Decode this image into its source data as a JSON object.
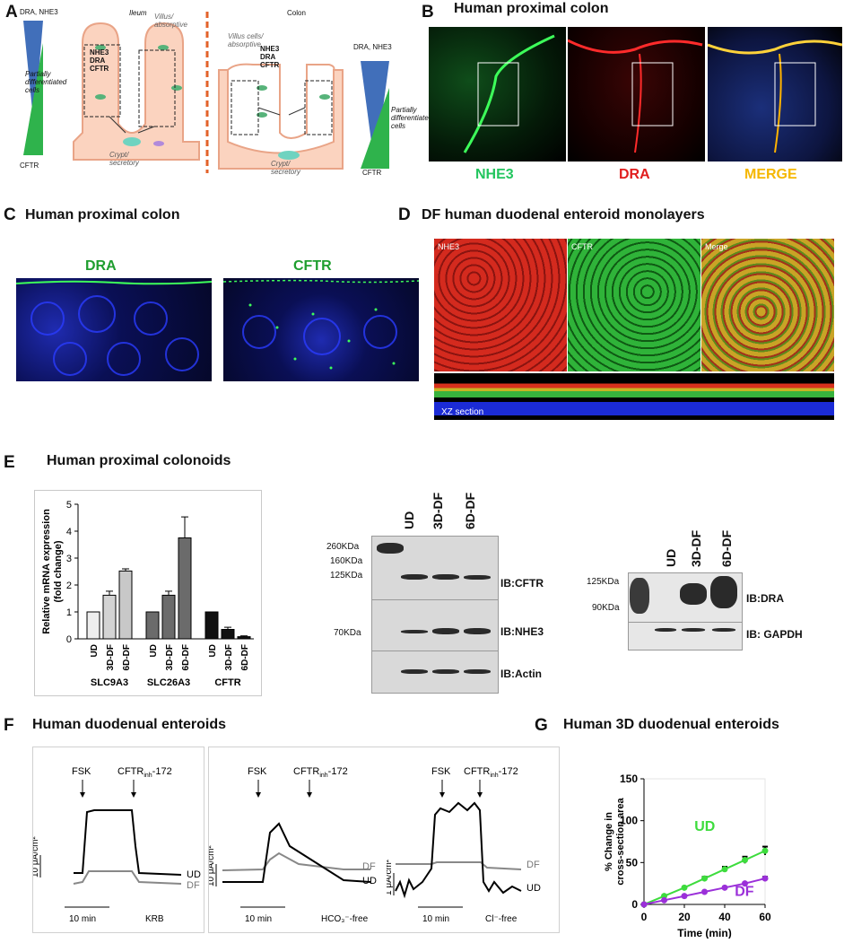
{
  "panels": {
    "A": {
      "letter": "A",
      "ileum": "Ileum",
      "colon": "Colon",
      "villus": "Villus/ absorptive",
      "villus_cells": "Villus cells/ absorptive",
      "crypt": "Crypt/ secretory",
      "nhe3_dra_cftr": "NHE3 DRA CFTR",
      "dra_nhe3": "DRA, NHE3",
      "partially": "Partially differentiated cells",
      "cftr": "CFTR"
    },
    "B": {
      "letter": "B",
      "title": "Human proximal colon",
      "channels": [
        "NHE3",
        "DRA",
        "MERGE"
      ],
      "colors": [
        "#22c55e",
        "#e11d1d",
        "#f5b700"
      ]
    },
    "C": {
      "letter": "C",
      "title": "Human proximal colon",
      "channels": [
        "DRA",
        "CFTR"
      ]
    },
    "D": {
      "letter": "D",
      "title": "DF human duodenal enteroid monolayers",
      "channels": [
        "NHE3",
        "CFTR",
        "Merge"
      ],
      "xz": "XZ section"
    },
    "E": {
      "letter": "E",
      "title": "Human proximal colonoids",
      "chart_data": {
        "type": "bar",
        "ylabel": "Relative mRNA expression (fold change)",
        "ylim": [
          0,
          5
        ],
        "yticks": [
          "0",
          "1",
          "2",
          "3",
          "4",
          "5"
        ],
        "groups": [
          "SLC9A3",
          "SLC26A3",
          "CFTR"
        ],
        "categories": [
          "UD",
          "3D-DF",
          "6D-DF"
        ],
        "series": [
          {
            "group": "SLC9A3",
            "values": [
              1.0,
              1.62,
              2.52
            ],
            "err": [
              0,
              0.15,
              0.08
            ]
          },
          {
            "group": "SLC26A3",
            "values": [
              1.0,
              1.62,
              3.75
            ],
            "err": [
              0,
              0.15,
              0.78
            ]
          },
          {
            "group": "CFTR",
            "values": [
              1.0,
              0.35,
              0.08
            ],
            "err": [
              0,
              0.08,
              0.03
            ]
          }
        ]
      },
      "blot1": {
        "lanes": [
          "UD",
          "3D-DF",
          "6D-DF"
        ],
        "kda": [
          "260KDa",
          "160KDa",
          "125KDa",
          "70KDa"
        ],
        "ib": [
          "IB:CFTR",
          "IB:NHE3",
          "IB:Actin"
        ]
      },
      "blot2": {
        "lanes": [
          "UD",
          "3D-DF",
          "6D-DF"
        ],
        "kda": [
          "125KDa",
          "90KDa"
        ],
        "ib": [
          "IB:DRA",
          "IB: GAPDH"
        ]
      }
    },
    "F": {
      "letter": "F",
      "title": "Human duodenual enteroids",
      "fsk": "FSK",
      "inh": "CFTR",
      "inh_sub": "inh",
      "inh_suffix": "-172",
      "traces": [
        {
          "scale": "10 μA/cm²",
          "time": "10 min",
          "cond": "KRB",
          "ud": "UD",
          "df": "DF"
        },
        {
          "scale": "10 μA/cm²",
          "time": "10 min",
          "cond": "HCO₃⁻-free",
          "ud": "UD",
          "df": "DF"
        },
        {
          "scale": "1 μA/cm²",
          "time": "10 min",
          "cond": "Cl⁻-free",
          "ud": "UD",
          "df": "DF"
        }
      ]
    },
    "G": {
      "letter": "G",
      "title": "Human 3D duodenual enteroids",
      "chart_data": {
        "type": "line",
        "x": [
          0,
          10,
          20,
          30,
          40,
          50,
          60
        ],
        "xlabel": "Time (min)",
        "ylabel": "% Change in cross-section area",
        "xlim": [
          0,
          60
        ],
        "ylim": [
          0,
          150
        ],
        "xticks": [
          "0",
          "20",
          "40",
          "60"
        ],
        "yticks": [
          "0",
          "50",
          "100",
          "150"
        ],
        "series": [
          {
            "name": "UD",
            "color": "#3ddc3d",
            "values": [
              0,
              10,
              20,
              31,
              42,
              53,
              64
            ],
            "err": [
              0,
              1,
              1,
              2,
              3,
              4,
              5
            ]
          },
          {
            "name": "DF",
            "color": "#9b30d9",
            "values": [
              0,
              5,
              10,
              15,
              20,
              25,
              31
            ],
            "err": [
              0,
              0,
              1,
              1,
              1,
              1,
              2
            ]
          }
        ]
      }
    }
  }
}
